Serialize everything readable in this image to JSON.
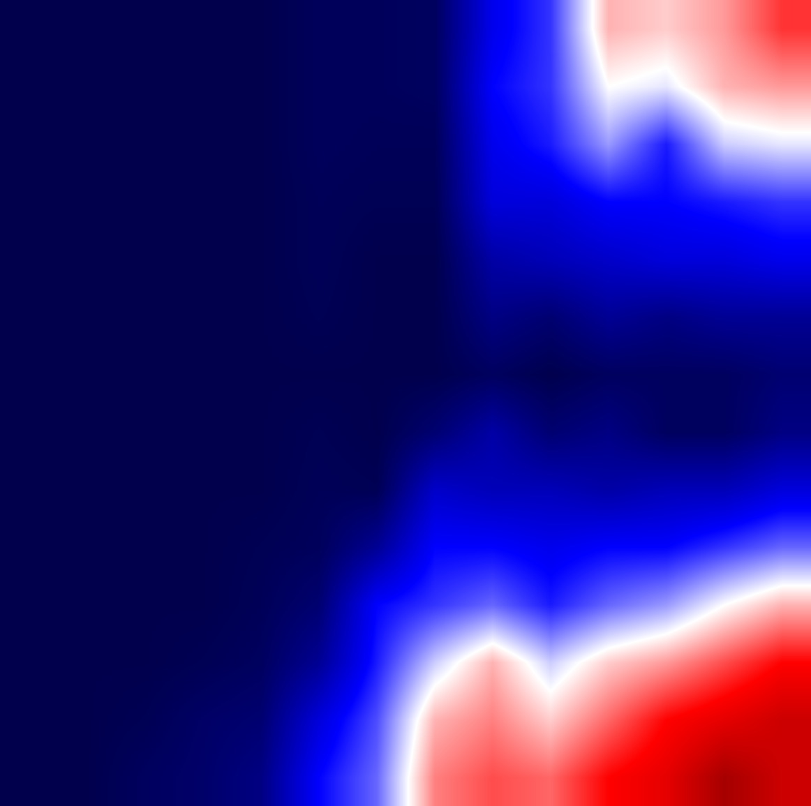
{
  "chart_data": {
    "type": "heatmap",
    "tick_labels": false,
    "zlim": [
      -1,
      1
    ],
    "z": [
      [
        -1,
        -1,
        -1,
        -1,
        -1,
        -0.96,
        -0.96,
        -0.95,
        -0.55,
        -0.4,
        0.15,
        0.1,
        0.2,
        0.4
      ],
      [
        -1,
        -1,
        -1,
        -1,
        -1,
        -0.96,
        -0.96,
        -0.95,
        -0.5,
        -0.4,
        0,
        -0.05,
        0.15,
        0.2
      ],
      [
        -1,
        -1,
        -1,
        -1,
        -1,
        -0.96,
        -0.97,
        -0.97,
        -0.55,
        -0.45,
        -0.2,
        -0.45,
        -0.1,
        -0.05
      ],
      [
        -1,
        -1,
        -1,
        -1,
        -1,
        -0.97,
        -0.98,
        -0.98,
        -0.6,
        -0.6,
        -0.5,
        -0.5,
        -0.45,
        -0.4
      ],
      [
        -1,
        -1,
        -1,
        -1,
        -1,
        -0.97,
        -1,
        -1,
        -0.75,
        -0.7,
        -0.65,
        -0.6,
        -0.6,
        -0.55
      ],
      [
        -1,
        -1,
        -1,
        -1,
        -1,
        -0.98,
        -1,
        -1,
        -0.85,
        -0.9,
        -0.8,
        -0.85,
        -0.8,
        -0.8
      ],
      [
        -1,
        -1,
        -1,
        -1,
        -1,
        -1,
        -1,
        -1,
        -0.95,
        -1,
        -0.95,
        -0.95,
        -0.95,
        -0.9
      ],
      [
        -1,
        -1,
        -1,
        -1,
        -1,
        -0.98,
        -1,
        -0.9,
        -0.75,
        -0.9,
        -0.85,
        -0.95,
        -0.95,
        -0.85
      ],
      [
        -1,
        -1,
        -1,
        -1,
        -1,
        -0.97,
        -0.98,
        -0.65,
        -0.7,
        -0.7,
        -0.75,
        -0.7,
        -0.7,
        -0.6
      ],
      [
        -1,
        -1,
        -1,
        -1,
        -0.98,
        -0.96,
        -0.8,
        -0.5,
        -0.5,
        -0.55,
        -0.5,
        -0.5,
        -0.4,
        -0.3
      ],
      [
        -1,
        -1,
        -1,
        -1,
        -0.97,
        -0.9,
        -0.5,
        -0.4,
        -0.3,
        -0.45,
        -0.3,
        -0.2,
        0,
        0.15
      ],
      [
        -1,
        -1,
        -1,
        -0.98,
        -0.95,
        -0.8,
        -0.45,
        -0.1,
        0.15,
        -0.1,
        0.1,
        0.2,
        0.35,
        0.5
      ],
      [
        -1,
        -1,
        -0.98,
        -0.93,
        -0.9,
        -0.6,
        -0.35,
        0.15,
        0.25,
        0.1,
        0.3,
        0.5,
        0.6,
        0.7
      ],
      [
        -1,
        -1,
        -0.95,
        -0.92,
        -0.85,
        -0.5,
        -0.3,
        0.25,
        0.35,
        0.3,
        0.5,
        0.6,
        0.85,
        0.7
      ]
    ]
  }
}
